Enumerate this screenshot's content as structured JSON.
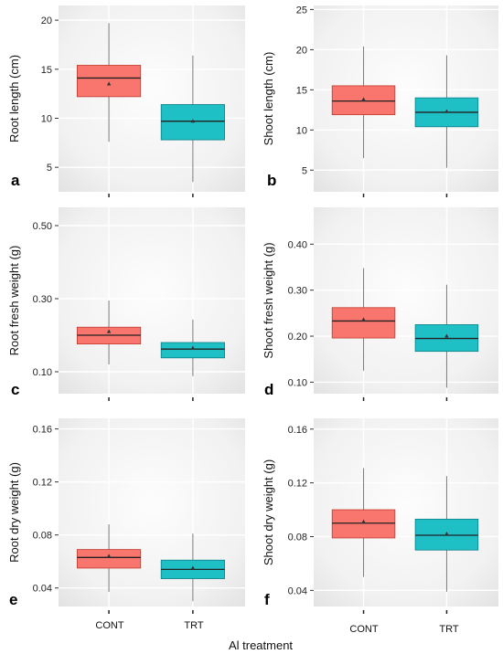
{
  "figure": {
    "x_axis_title": "Al treatment",
    "categories": [
      "CONT",
      "TRT"
    ]
  },
  "colors": {
    "CONT": "#f8766d",
    "CONT_border": "#c0392b",
    "TRT": "#1fbfc6",
    "TRT_border": "#0e7f86",
    "panel_bg": "#ececec"
  },
  "chart_data": [
    {
      "type": "box",
      "panel": "a",
      "ylabel": "Root length (cm)",
      "ylim": [
        2.5,
        21.5
      ],
      "yticks": [
        5,
        10,
        15,
        20
      ],
      "tick_labels": [
        "5",
        "10",
        "15",
        "20"
      ],
      "grid": true,
      "categories": [
        "CONT",
        "TRT"
      ],
      "boxes": [
        {
          "category": "CONT",
          "whisker_low": 7.6,
          "q1": 12.2,
          "median": 14.1,
          "q3": 15.4,
          "whisker_high": 19.7,
          "mean": 13.5
        },
        {
          "category": "TRT",
          "whisker_low": 3.5,
          "q1": 7.8,
          "median": 9.7,
          "q3": 11.4,
          "whisker_high": 16.4,
          "mean": 9.7
        }
      ]
    },
    {
      "type": "box",
      "panel": "b",
      "ylabel": "Shoot length (cm)",
      "ylim": [
        2.3,
        25.5
      ],
      "yticks": [
        5,
        10,
        15,
        20,
        25
      ],
      "tick_labels": [
        "5",
        "10",
        "15",
        "20",
        "25"
      ],
      "grid": true,
      "categories": [
        "CONT",
        "TRT"
      ],
      "boxes": [
        {
          "category": "CONT",
          "whisker_low": 6.5,
          "q1": 11.9,
          "median": 13.6,
          "q3": 15.5,
          "whisker_high": 20.4,
          "mean": 13.8
        },
        {
          "category": "TRT",
          "whisker_low": 5.3,
          "q1": 10.4,
          "median": 12.2,
          "q3": 14.0,
          "whisker_high": 19.3,
          "mean": 12.3
        }
      ]
    },
    {
      "type": "box",
      "panel": "c",
      "ylabel": "Root fresh weight (g)",
      "ylim": [
        0.04,
        0.55
      ],
      "yticks": [
        0.1,
        0.3,
        0.5
      ],
      "tick_labels": [
        "0.10",
        "0.30",
        "0.50"
      ],
      "grid": true,
      "categories": [
        "CONT",
        "TRT"
      ],
      "boxes": [
        {
          "category": "CONT",
          "whisker_low": 0.12,
          "q1": 0.176,
          "median": 0.2,
          "q3": 0.222,
          "whisker_high": 0.295,
          "mean": 0.21
        },
        {
          "category": "TRT",
          "whisker_low": 0.088,
          "q1": 0.138,
          "median": 0.162,
          "q3": 0.18,
          "whisker_high": 0.243,
          "mean": 0.165
        }
      ]
    },
    {
      "type": "box",
      "panel": "d",
      "ylabel": "Shoot fresh weight (g)",
      "ylim": [
        0.075,
        0.48
      ],
      "yticks": [
        0.1,
        0.2,
        0.3,
        0.4
      ],
      "tick_labels": [
        "0.10",
        "0.20",
        "0.30",
        "0.40"
      ],
      "grid": true,
      "categories": [
        "CONT",
        "TRT"
      ],
      "boxes": [
        {
          "category": "CONT",
          "whisker_low": 0.125,
          "q1": 0.196,
          "median": 0.233,
          "q3": 0.262,
          "whisker_high": 0.348,
          "mean": 0.236
        },
        {
          "category": "TRT",
          "whisker_low": 0.088,
          "q1": 0.167,
          "median": 0.195,
          "q3": 0.225,
          "whisker_high": 0.312,
          "mean": 0.2
        }
      ]
    },
    {
      "type": "box",
      "panel": "e",
      "ylabel": "Root dry weight (g)",
      "ylim": [
        0.026,
        0.168
      ],
      "yticks": [
        0.04,
        0.08,
        0.12,
        0.16
      ],
      "tick_labels": [
        "0.04",
        "0.08",
        "0.12",
        "0.16"
      ],
      "grid": true,
      "categories": [
        "CONT",
        "TRT"
      ],
      "boxes": [
        {
          "category": "CONT",
          "whisker_low": 0.037,
          "q1": 0.055,
          "median": 0.063,
          "q3": 0.069,
          "whisker_high": 0.088,
          "mean": 0.064
        },
        {
          "category": "TRT",
          "whisker_low": 0.03,
          "q1": 0.047,
          "median": 0.054,
          "q3": 0.061,
          "whisker_high": 0.081,
          "mean": 0.055
        }
      ]
    },
    {
      "type": "box",
      "panel": "f",
      "ylabel": "Shoot dry weight (g)",
      "ylim": [
        0.028,
        0.168
      ],
      "yticks": [
        0.04,
        0.08,
        0.12,
        0.16
      ],
      "tick_labels": [
        "0.04",
        "0.08",
        "0.12",
        "0.16"
      ],
      "grid": true,
      "categories": [
        "CONT",
        "TRT"
      ],
      "boxes": [
        {
          "category": "CONT",
          "whisker_low": 0.05,
          "q1": 0.079,
          "median": 0.09,
          "q3": 0.1,
          "whisker_high": 0.131,
          "mean": 0.091
        },
        {
          "category": "TRT",
          "whisker_low": 0.039,
          "q1": 0.07,
          "median": 0.081,
          "q3": 0.093,
          "whisker_high": 0.125,
          "mean": 0.082
        }
      ]
    }
  ]
}
